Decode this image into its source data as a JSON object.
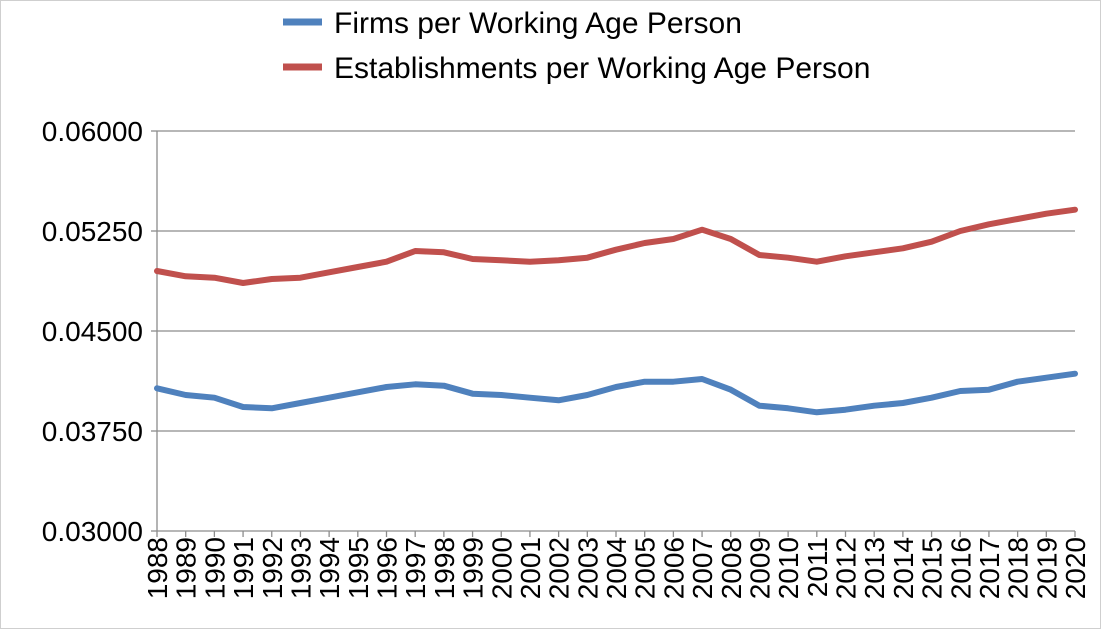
{
  "chart_data": {
    "type": "line",
    "title": "",
    "xlabel": "",
    "ylabel": "",
    "ylim": [
      0.03,
      0.06
    ],
    "yticks": [
      "0.06000",
      "0.05250",
      "0.04500",
      "0.03750",
      "0.03000"
    ],
    "ytick_values": [
      0.06,
      0.0525,
      0.045,
      0.0375,
      0.03
    ],
    "grid": true,
    "legend_position": "top",
    "categories": [
      "1988",
      "1989",
      "1990",
      "1991",
      "1992",
      "1993",
      "1994",
      "1995",
      "1996",
      "1997",
      "1998",
      "1999",
      "2000",
      "2001",
      "2002",
      "2003",
      "2004",
      "2005",
      "2006",
      "2007",
      "2008",
      "2009",
      "2010",
      "2011",
      "2012",
      "2013",
      "2014",
      "2015",
      "2016",
      "2017",
      "2018",
      "2019",
      "2020"
    ],
    "series": [
      {
        "name": "Firms per Working Age Person",
        "color": "#4f81bd",
        "values": [
          0.0407,
          0.0402,
          0.04,
          0.0393,
          0.0392,
          0.0396,
          0.04,
          0.0404,
          0.0408,
          0.041,
          0.0409,
          0.0403,
          0.0402,
          0.04,
          0.0398,
          0.0402,
          0.0408,
          0.0412,
          0.0412,
          0.0414,
          0.0406,
          0.0394,
          0.0392,
          0.0389,
          0.0391,
          0.0394,
          0.0396,
          0.04,
          0.0405,
          0.0406,
          0.0412,
          0.0415,
          0.0418
        ]
      },
      {
        "name": "Establishments per Working Age Person",
        "color": "#c0504d",
        "values": [
          0.0495,
          0.0491,
          0.049,
          0.0486,
          0.0489,
          0.049,
          0.0494,
          0.0498,
          0.0502,
          0.051,
          0.0509,
          0.0504,
          0.0503,
          0.0502,
          0.0503,
          0.0505,
          0.0511,
          0.0516,
          0.0519,
          0.0526,
          0.0519,
          0.0507,
          0.0505,
          0.0502,
          0.0506,
          0.0509,
          0.0512,
          0.0517,
          0.0525,
          0.053,
          0.0534,
          0.0538,
          0.0541
        ]
      }
    ]
  }
}
